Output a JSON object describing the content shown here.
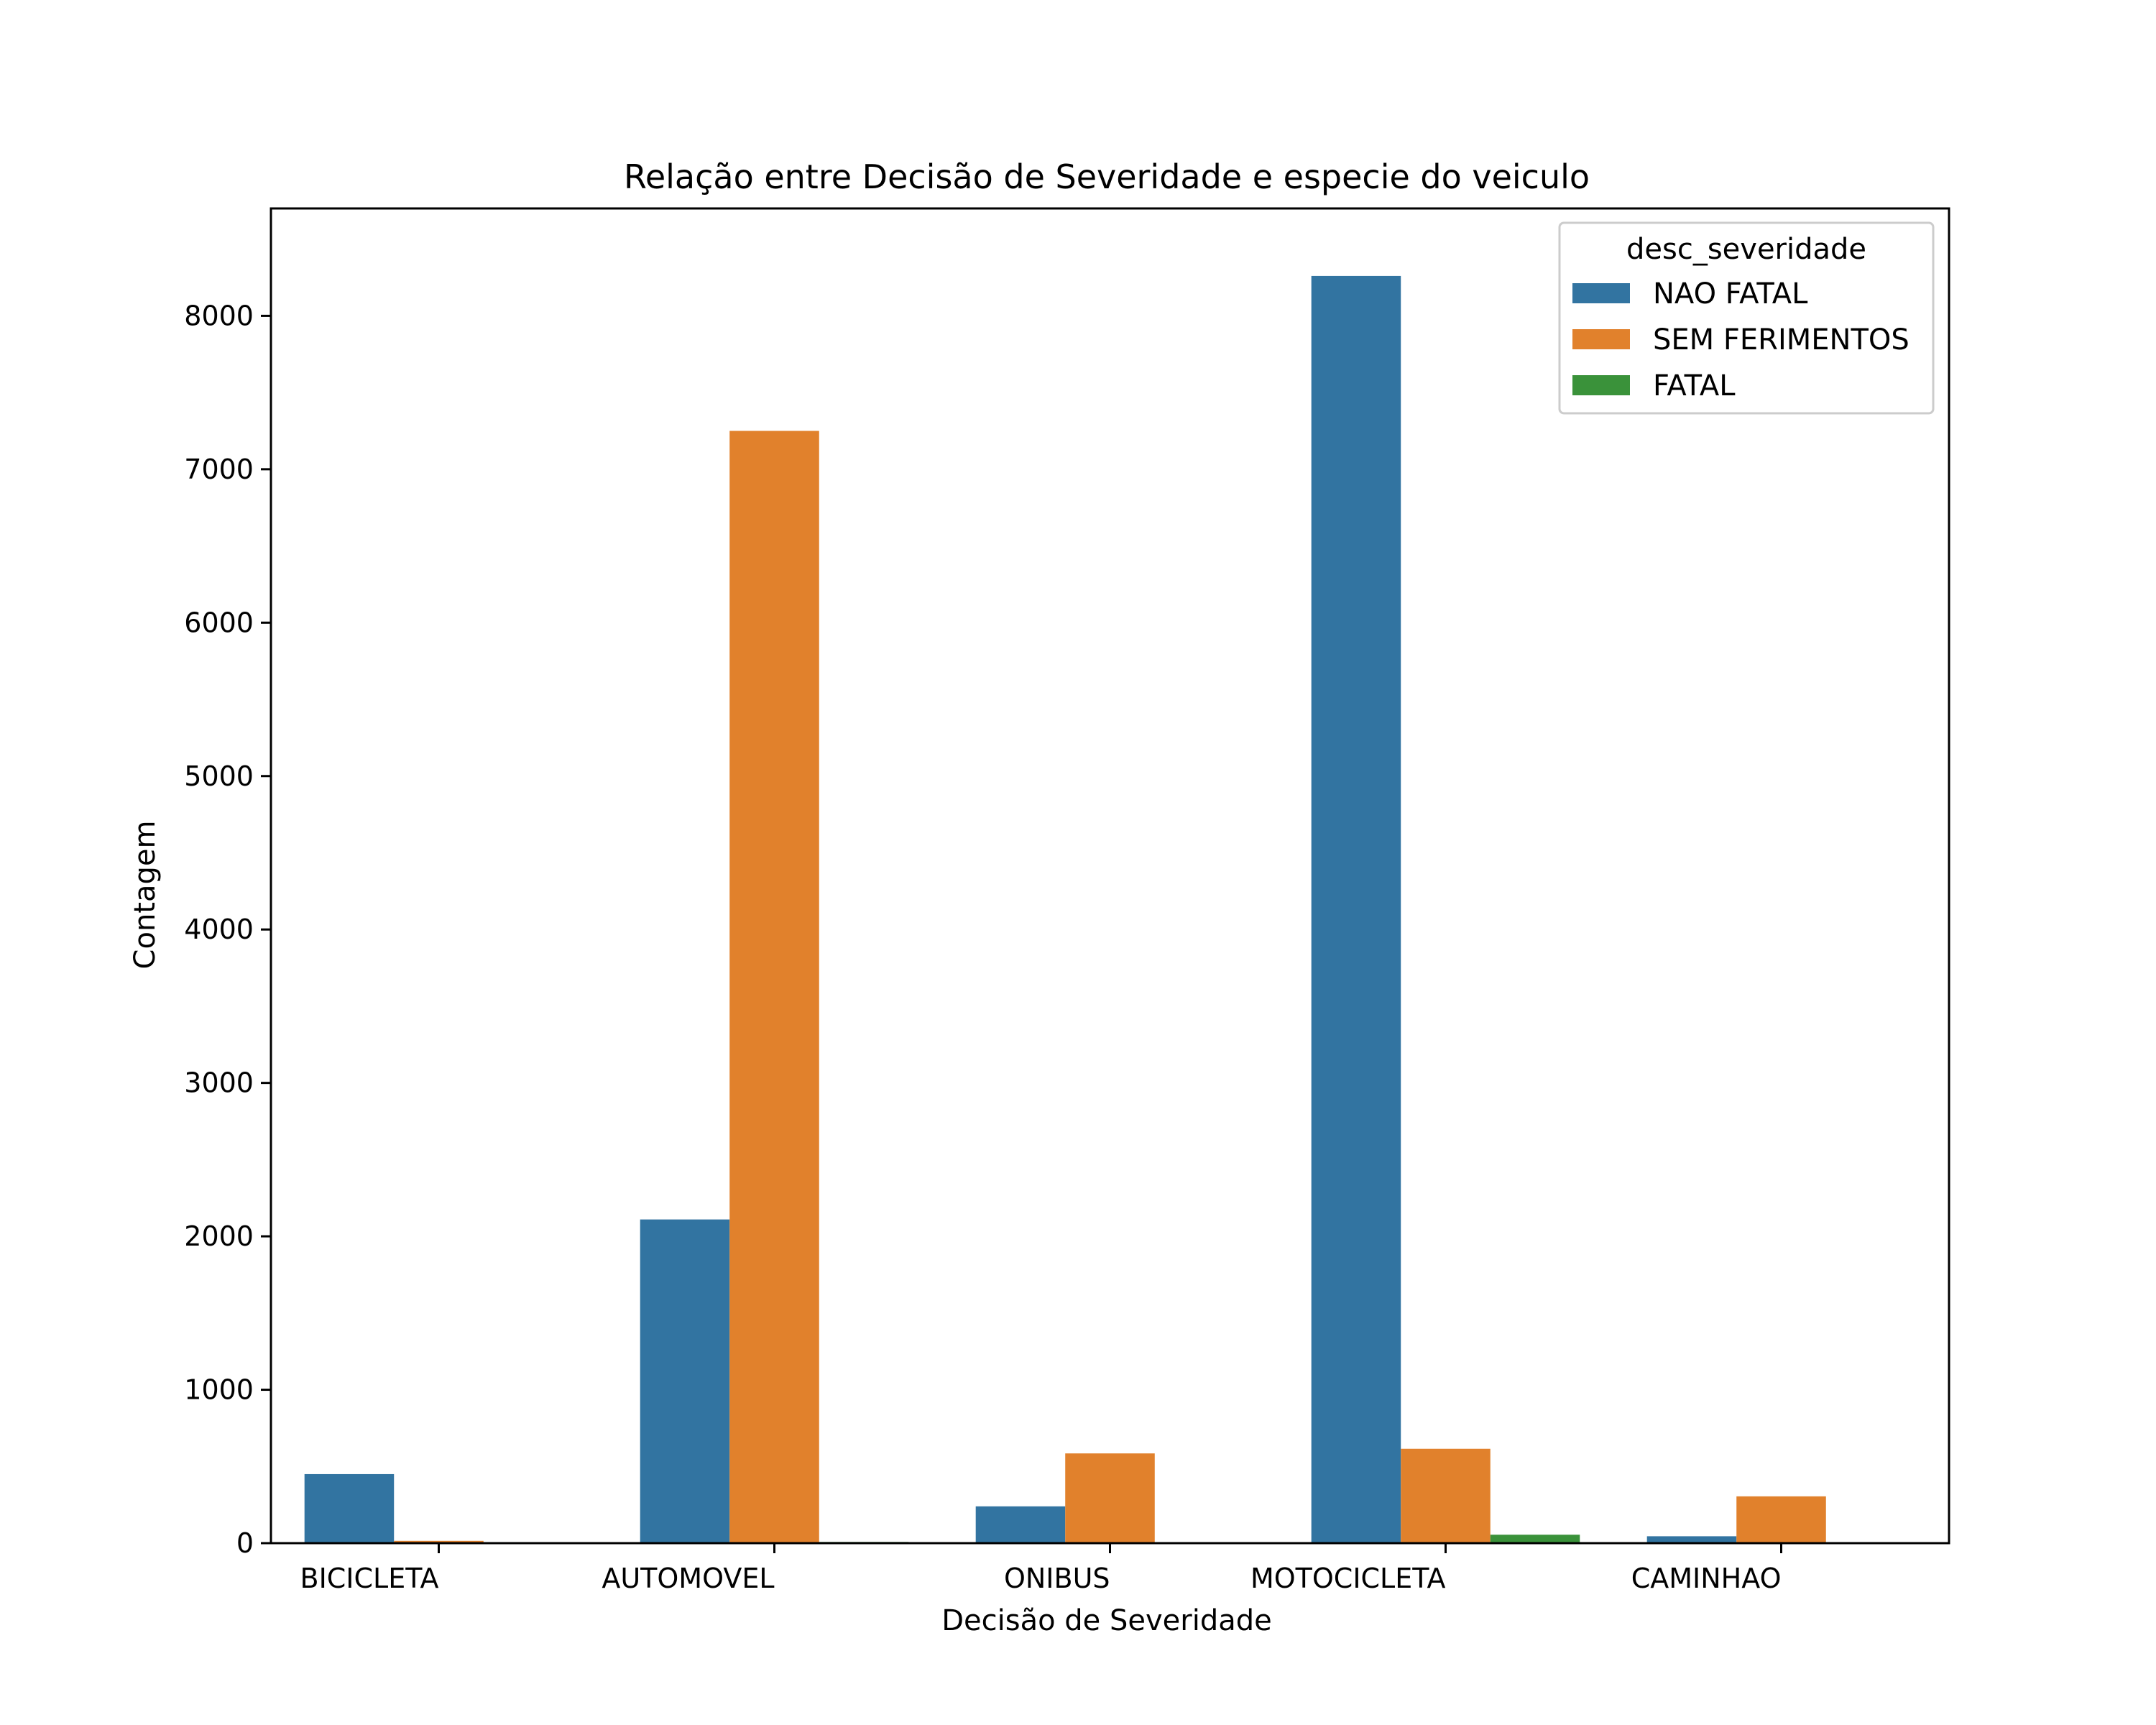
{
  "chart_data": {
    "type": "bar",
    "title": "Relação entre Decisão de Severidade e especie do veiculo",
    "xlabel": "Decisão de Severidade",
    "ylabel": "Contagem",
    "categories": [
      "BICICLETA",
      "AUTOMOVEL",
      "ONIBUS",
      "MOTOCICLETA",
      "CAMINHAO"
    ],
    "ylim": [
      0,
      8700
    ],
    "yticks": [
      0,
      1000,
      2000,
      3000,
      4000,
      5000,
      6000,
      7000,
      8000
    ],
    "legend": {
      "title": "desc_severidade",
      "placement": "top-right"
    },
    "series": [
      {
        "name": "NAO FATAL",
        "color": "#3274a1",
        "values": [
          450,
          2110,
          240,
          8260,
          45
        ]
      },
      {
        "name": "SEM FERIMENTOS",
        "color": "#e1812c",
        "values": [
          15,
          7250,
          585,
          615,
          305
        ]
      },
      {
        "name": "FATAL",
        "color": "#3a923a",
        "values": [
          0,
          8,
          0,
          55,
          0
        ]
      }
    ],
    "grid": false
  }
}
